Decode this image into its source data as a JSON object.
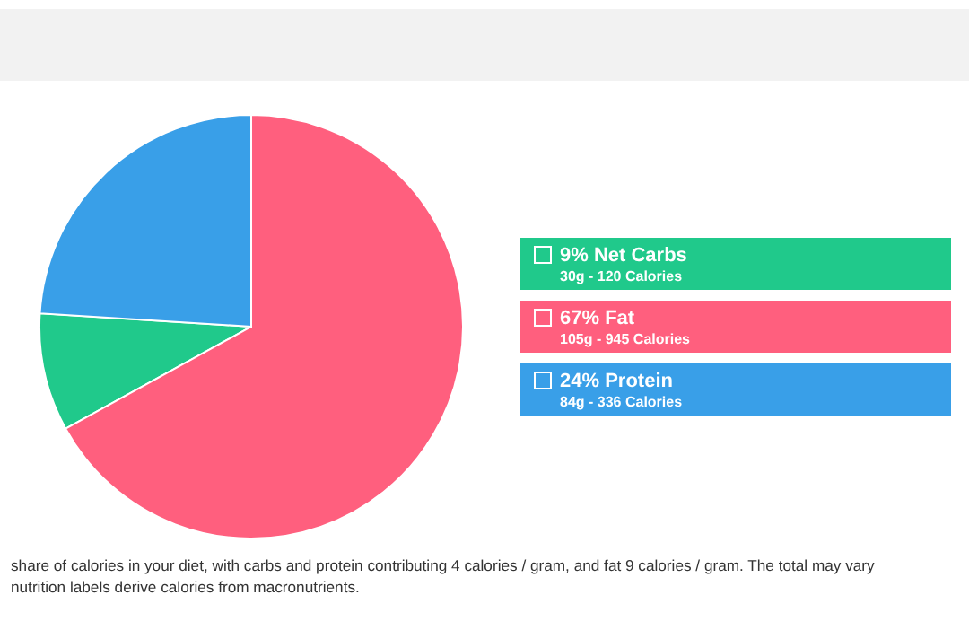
{
  "chart_data": {
    "type": "pie",
    "categories": [
      "9% Net Carbs",
      "67% Fat",
      "24% Protein"
    ],
    "values": [
      9,
      67,
      24
    ],
    "colors": [
      "#20c98b",
      "#ff5f7e",
      "#399fe8"
    ],
    "legend": "right",
    "annotations": [
      "30g - 120 Calories",
      "105g - 945 Calories",
      "84g - 336 Calories",
      "share of calories in your diet, with carbs and protein contributing 4 calories / gram, and fat 9 calories / gram. The total may vary",
      "nutrition labels derive calories from macronutrients."
    ]
  }
}
